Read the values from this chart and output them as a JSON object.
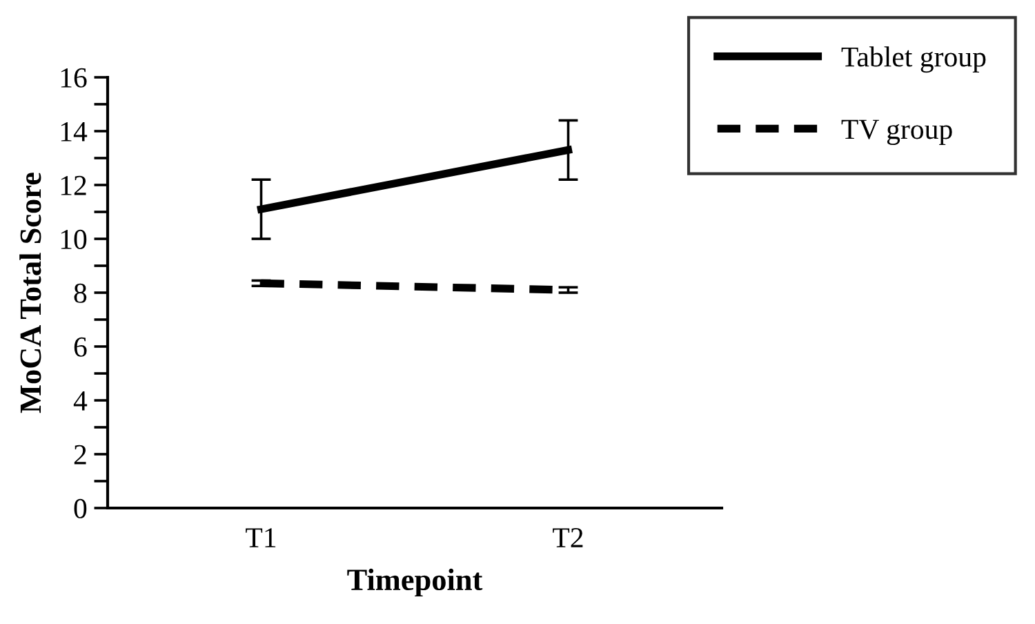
{
  "chart_data": {
    "type": "line",
    "xlabel": "Timepoint",
    "ylabel": "MoCA Total Score",
    "categories": [
      "T1",
      "T2"
    ],
    "series": [
      {
        "name": "Tablet group",
        "color": "#000000",
        "line_style": "solid",
        "values": [
          11.1,
          13.3
        ],
        "errors": [
          1.1,
          1.1
        ]
      },
      {
        "name": "TV group",
        "color": "#000000",
        "line_style": "dashed",
        "values": [
          8.35,
          8.1
        ],
        "errors": [
          0.1,
          0.1
        ]
      }
    ],
    "ylim": [
      0,
      16
    ],
    "yticks": [
      0,
      {
        "value": 1,
        "label": null
      },
      2,
      {
        "value": 3,
        "label": null
      },
      4,
      {
        "value": 5,
        "label": null
      },
      6,
      {
        "value": 7,
        "label": null
      },
      8,
      {
        "value": 9,
        "label": null
      },
      10,
      {
        "value": 11,
        "label": null
      },
      12,
      {
        "value": 13,
        "label": null
      },
      14,
      {
        "value": 15,
        "label": null
      },
      16
    ],
    "grid": false,
    "legend": "top right",
    "marker": "none"
  }
}
